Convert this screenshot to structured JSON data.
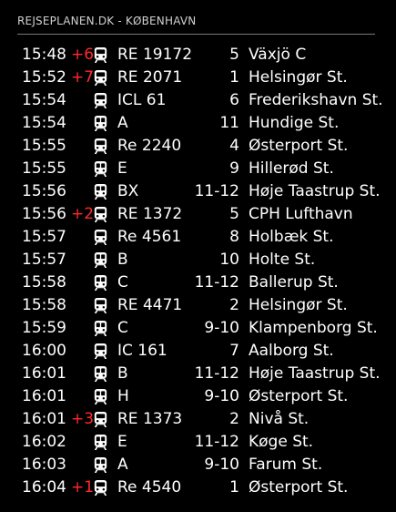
{
  "header": {
    "title": "REJSEPLANEN.DK - KØBENHAVN"
  },
  "colors": {
    "delay": "#ff2a2a",
    "text": "#ffffff",
    "background": "#000000"
  },
  "departures": [
    {
      "time": "15:48",
      "delay": "+6",
      "icon": "train-icon",
      "line": "RE 19172",
      "track": "5",
      "destination": "Växjö C"
    },
    {
      "time": "15:52",
      "delay": "+7",
      "icon": "train-icon",
      "line": "RE 2071",
      "track": "1",
      "destination": "Helsingør St."
    },
    {
      "time": "15:54",
      "delay": "",
      "icon": "train-icon",
      "line": "ICL 61",
      "track": "6",
      "destination": "Frederikshavn St."
    },
    {
      "time": "15:54",
      "delay": "",
      "icon": "s-train-icon",
      "line": "A",
      "track": "11",
      "destination": "Hundige St."
    },
    {
      "time": "15:55",
      "delay": "",
      "icon": "train-icon",
      "line": "Re 2240",
      "track": "4",
      "destination": "Østerport St."
    },
    {
      "time": "15:55",
      "delay": "",
      "icon": "s-train-icon",
      "line": "E",
      "track": "9",
      "destination": "Hillerød St."
    },
    {
      "time": "15:56",
      "delay": "",
      "icon": "s-train-icon",
      "line": "BX",
      "track": "11-12",
      "destination": "Høje Taastrup St."
    },
    {
      "time": "15:56",
      "delay": "+2",
      "icon": "train-icon",
      "line": "RE 1372",
      "track": "5",
      "destination": "CPH Lufthavn"
    },
    {
      "time": "15:57",
      "delay": "",
      "icon": "train-icon",
      "line": "Re 4561",
      "track": "8",
      "destination": "Holbæk St."
    },
    {
      "time": "15:57",
      "delay": "",
      "icon": "s-train-icon",
      "line": "B",
      "track": "10",
      "destination": "Holte St."
    },
    {
      "time": "15:58",
      "delay": "",
      "icon": "s-train-icon",
      "line": "C",
      "track": "11-12",
      "destination": "Ballerup St."
    },
    {
      "time": "15:58",
      "delay": "",
      "icon": "train-icon",
      "line": "RE 4471",
      "track": "2",
      "destination": "Helsingør St."
    },
    {
      "time": "15:59",
      "delay": "",
      "icon": "s-train-icon",
      "line": "C",
      "track": "9-10",
      "destination": "Klampenborg St."
    },
    {
      "time": "16:00",
      "delay": "",
      "icon": "train-icon",
      "line": "IC 161",
      "track": "7",
      "destination": "Aalborg St."
    },
    {
      "time": "16:01",
      "delay": "",
      "icon": "s-train-icon",
      "line": "B",
      "track": "11-12",
      "destination": "Høje Taastrup St."
    },
    {
      "time": "16:01",
      "delay": "",
      "icon": "s-train-icon",
      "line": "H",
      "track": "9-10",
      "destination": "Østerport St."
    },
    {
      "time": "16:01",
      "delay": "+3",
      "icon": "train-icon",
      "line": "RE 1373",
      "track": "2",
      "destination": "Nivå St."
    },
    {
      "time": "16:02",
      "delay": "",
      "icon": "s-train-icon",
      "line": "E",
      "track": "11-12",
      "destination": "Køge St."
    },
    {
      "time": "16:03",
      "delay": "",
      "icon": "s-train-icon",
      "line": "A",
      "track": "9-10",
      "destination": "Farum St."
    },
    {
      "time": "16:04",
      "delay": "+1",
      "icon": "train-icon",
      "line": "Re 4540",
      "track": "1",
      "destination": "Østerport St."
    }
  ]
}
